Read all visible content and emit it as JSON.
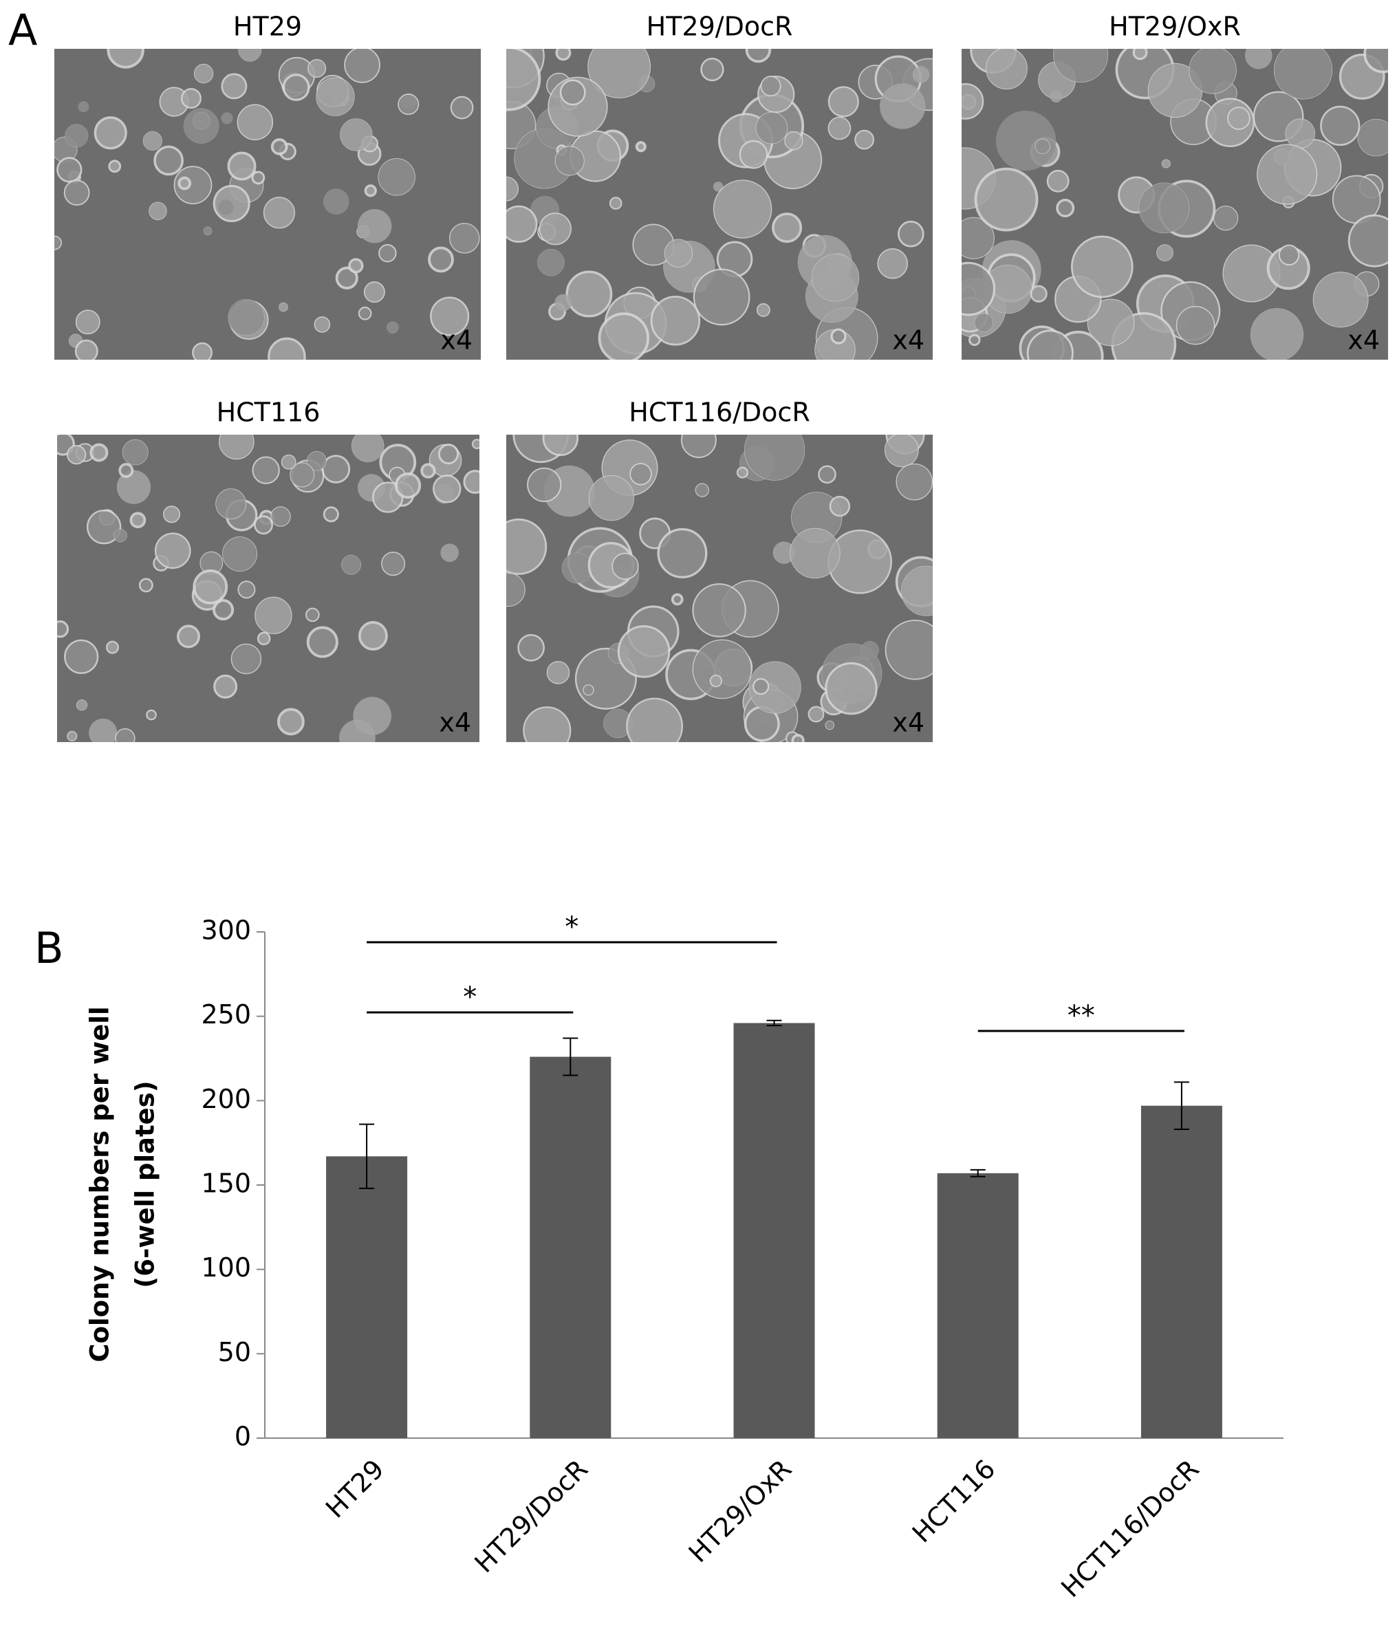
{
  "panel_a": {
    "label": "A",
    "images": [
      {
        "title": "HT29",
        "magnification": "x4"
      },
      {
        "title": "HT29/DocR",
        "magnification": "x4"
      },
      {
        "title": "HT29/OxR",
        "magnification": "x4"
      },
      {
        "title": "HCT116",
        "magnification": "x4"
      },
      {
        "title": "HCT116/DocR",
        "magnification": "x4"
      }
    ]
  },
  "chart_data": {
    "type": "bar",
    "panel_label": "B",
    "ylabel": [
      "Colony numbers per well",
      "(6-well plates)"
    ],
    "categories": [
      "HT29",
      "HT29/DocR",
      "HT29/OxR",
      "HCT116",
      "HCT116/DocR"
    ],
    "values": [
      167,
      226,
      246,
      157,
      197
    ],
    "errors": [
      19,
      11,
      1.5,
      2,
      14
    ],
    "color": "#595959",
    "ylim": [
      0,
      300
    ],
    "yticks": [
      0,
      50,
      100,
      150,
      200,
      250,
      300
    ],
    "annotations": [
      {
        "from": "HT29",
        "to": "HT29/OxR",
        "label": "*"
      },
      {
        "from": "HT29",
        "to": "HT29/DocR",
        "label": "*"
      },
      {
        "from": "HCT116",
        "to": "HCT116/DocR",
        "label": "**"
      }
    ]
  }
}
